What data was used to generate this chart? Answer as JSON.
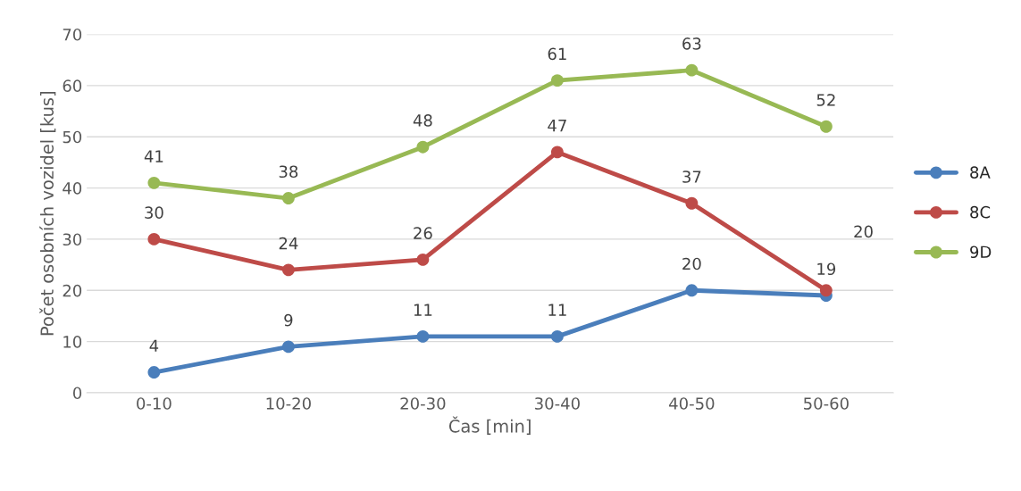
{
  "chart_data": {
    "type": "line",
    "xlabel": "Čas [min]",
    "ylabel": "Počet osobních vozidel [kus]",
    "categories": [
      "0-10",
      "10-20",
      "20-30",
      "30-40",
      "40-50",
      "50-60"
    ],
    "series": [
      {
        "name": "8A",
        "color": "#4a7ebb",
        "values": [
          4,
          9,
          11,
          11,
          20,
          19
        ]
      },
      {
        "name": "8C",
        "color": "#be4b48",
        "values": [
          30,
          24,
          26,
          47,
          37,
          20
        ]
      },
      {
        "name": "9D",
        "color": "#98b954",
        "values": [
          41,
          38,
          48,
          61,
          63,
          52
        ]
      }
    ],
    "ylim": [
      0,
      70
    ],
    "yticks": [
      0,
      10,
      20,
      30,
      40,
      50,
      60,
      70
    ],
    "grid": "y",
    "legend": "right",
    "marker": "circle",
    "line_style": "solid",
    "data_labels": true
  }
}
